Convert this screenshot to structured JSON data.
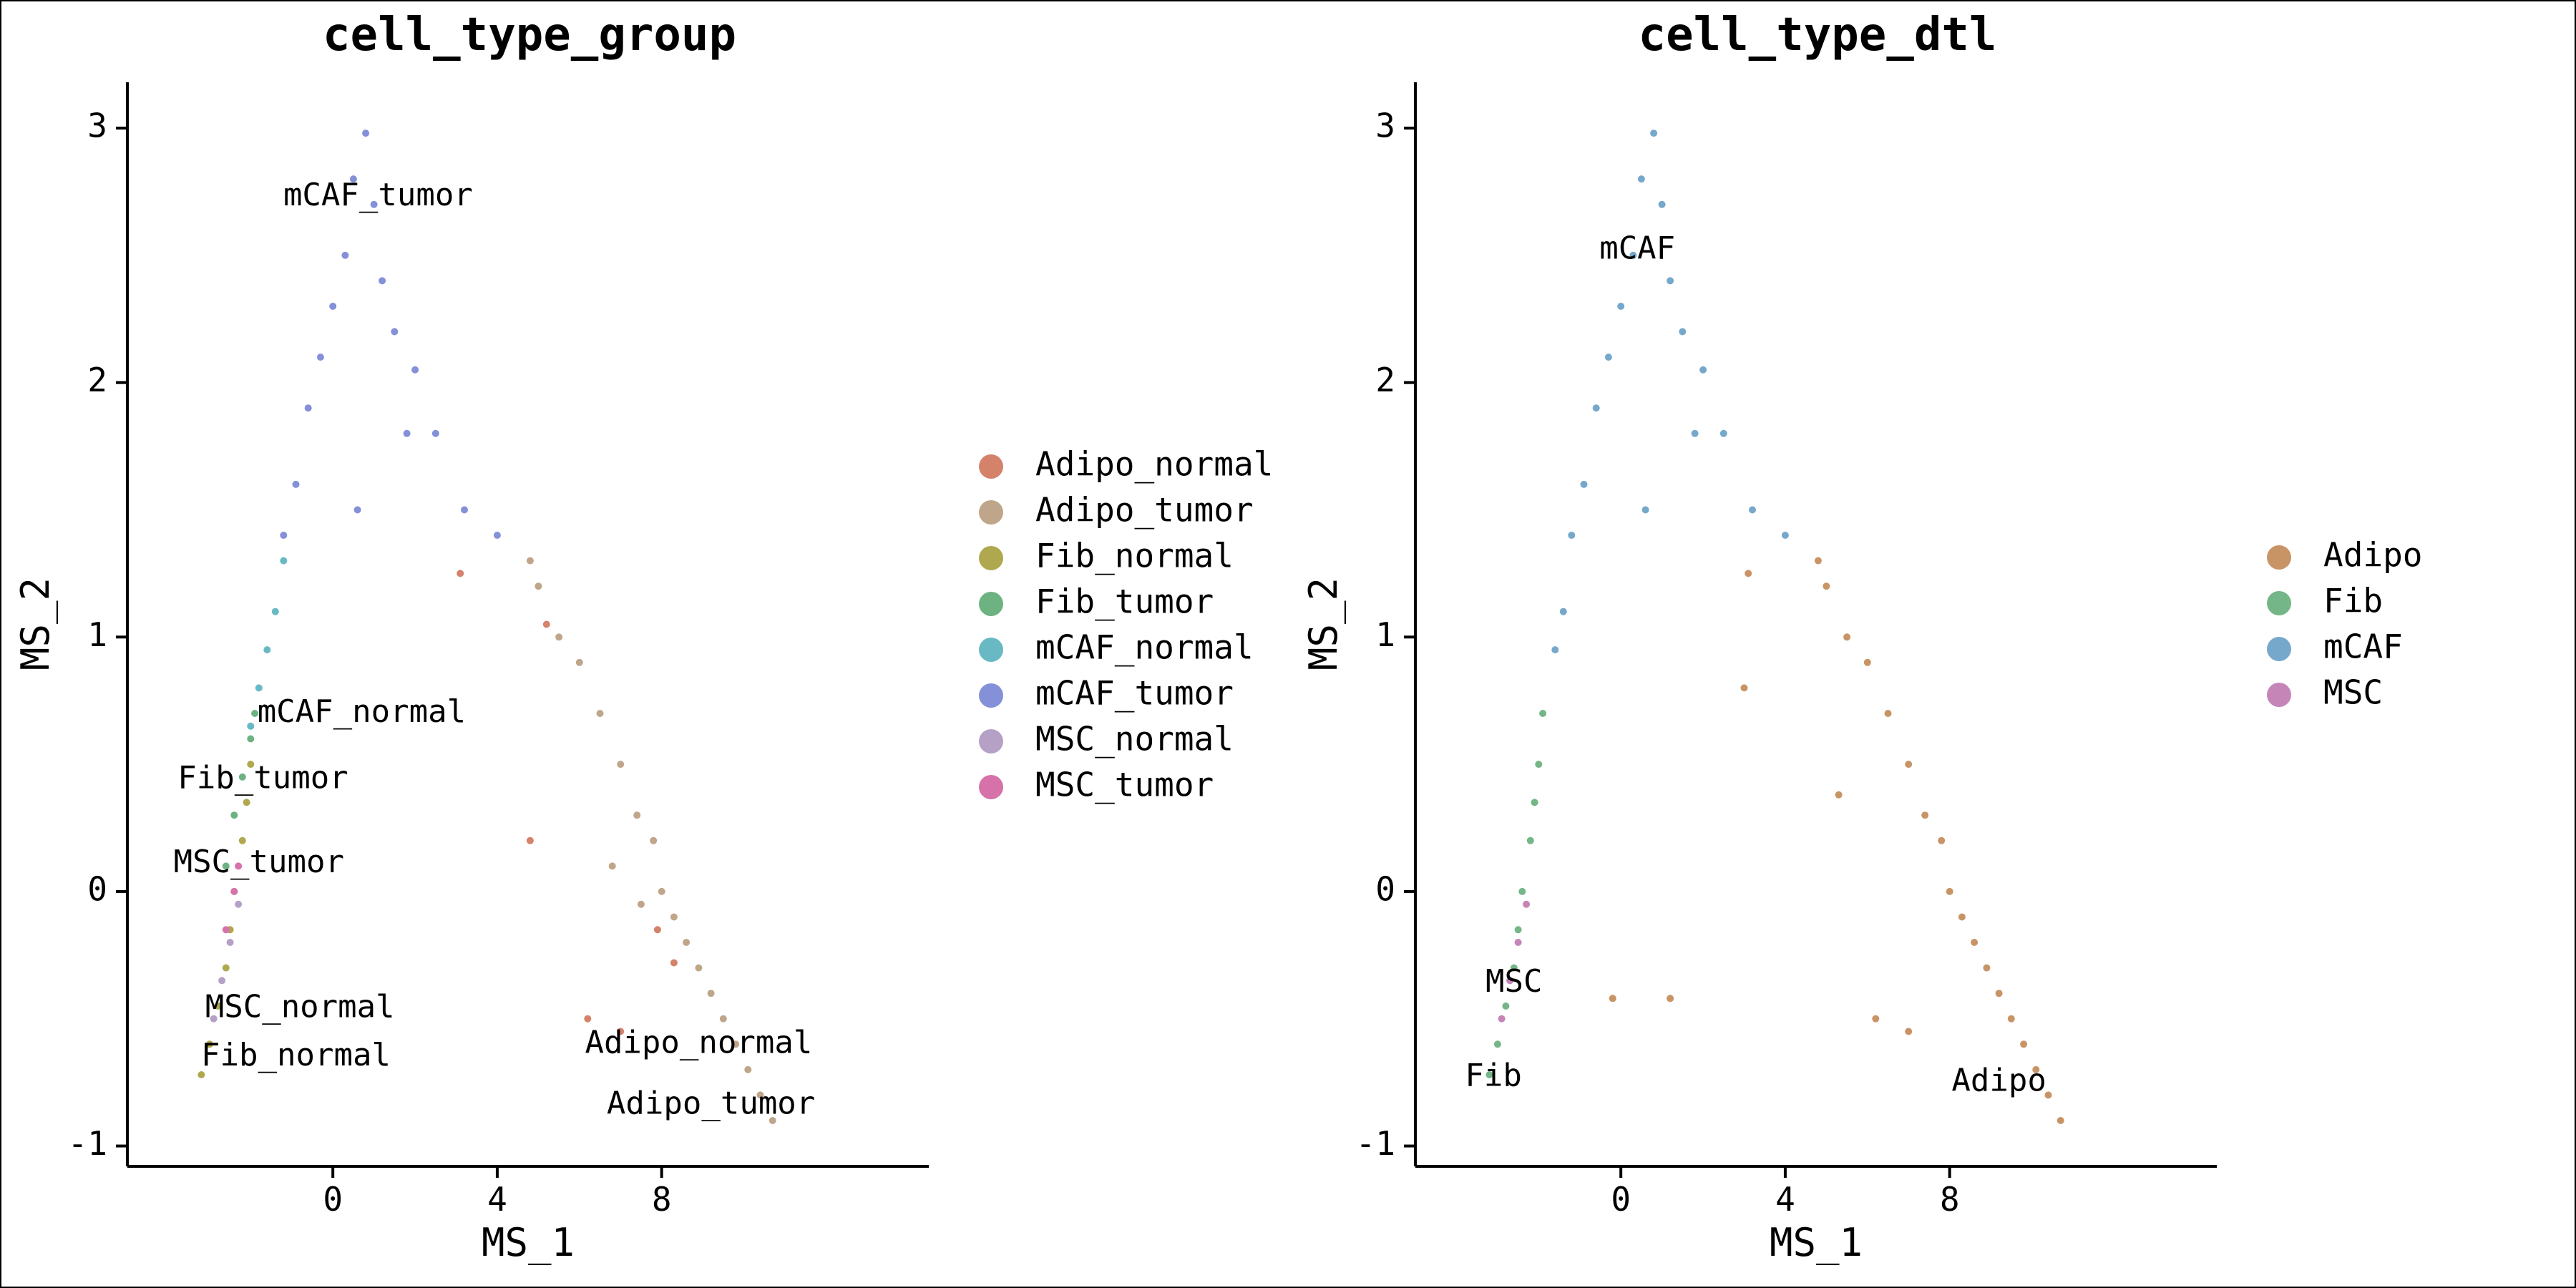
{
  "chart_data": [
    {
      "type": "scatter",
      "title": "cell_type_group",
      "xlabel": "MS_1",
      "ylabel": "MS_2",
      "xlim": [
        -5,
        14.5
      ],
      "ylim": [
        -1.08,
        3.18
      ],
      "xticks": [
        0,
        4,
        8
      ],
      "yticks": [
        -1,
        0,
        1,
        2,
        3
      ],
      "xtick_labels": [
        "0",
        "4",
        "8"
      ],
      "ytick_labels": [
        "-1",
        "0",
        "1",
        "2",
        "3"
      ],
      "legend_position": "right",
      "series": [
        {
          "name": "Adipo_normal",
          "color": "#D4826A",
          "points": [
            [
              3.1,
              1.25
            ],
            [
              5.2,
              1.05
            ],
            [
              6.2,
              -0.5
            ],
            [
              7.0,
              -0.55
            ],
            [
              4.8,
              0.2
            ],
            [
              8.3,
              -0.28
            ],
            [
              7.9,
              -0.15
            ]
          ]
        },
        {
          "name": "Adipo_tumor",
          "color": "#BFA58A",
          "points": [
            [
              4.8,
              1.3
            ],
            [
              5.0,
              1.2
            ],
            [
              5.5,
              1.0
            ],
            [
              6.0,
              0.9
            ],
            [
              6.5,
              0.7
            ],
            [
              7.0,
              0.5
            ],
            [
              7.4,
              0.3
            ],
            [
              7.8,
              0.2
            ],
            [
              8.0,
              0.0
            ],
            [
              8.3,
              -0.1
            ],
            [
              8.6,
              -0.2
            ],
            [
              8.9,
              -0.3
            ],
            [
              9.2,
              -0.4
            ],
            [
              9.5,
              -0.5
            ],
            [
              9.8,
              -0.6
            ],
            [
              10.1,
              -0.7
            ],
            [
              10.4,
              -0.8
            ],
            [
              10.7,
              -0.9
            ],
            [
              6.8,
              0.1
            ],
            [
              7.5,
              -0.05
            ]
          ]
        },
        {
          "name": "Fib_normal",
          "color": "#AFA84F",
          "points": [
            [
              -3.2,
              -0.72
            ],
            [
              -3.0,
              -0.6
            ],
            [
              -2.8,
              -0.45
            ],
            [
              -2.6,
              -0.3
            ],
            [
              -2.5,
              -0.15
            ],
            [
              -2.4,
              0.0
            ],
            [
              -2.2,
              0.2
            ],
            [
              -2.1,
              0.35
            ],
            [
              -2.0,
              0.5
            ]
          ]
        },
        {
          "name": "Fib_tumor",
          "color": "#6DB382",
          "points": [
            [
              -2.6,
              0.1
            ],
            [
              -2.4,
              0.3
            ],
            [
              -2.2,
              0.45
            ],
            [
              -2.0,
              0.6
            ],
            [
              -1.9,
              0.7
            ]
          ]
        },
        {
          "name": "mCAF_normal",
          "color": "#68B9C4",
          "points": [
            [
              -2.0,
              0.65
            ],
            [
              -1.8,
              0.8
            ],
            [
              -1.6,
              0.95
            ],
            [
              -1.4,
              1.1
            ],
            [
              -1.2,
              1.3
            ]
          ]
        },
        {
          "name": "mCAF_tumor",
          "color": "#8490D8",
          "points": [
            [
              0.8,
              2.98
            ],
            [
              0.5,
              2.8
            ],
            [
              1.0,
              2.7
            ],
            [
              0.3,
              2.5
            ],
            [
              1.2,
              2.4
            ],
            [
              0.0,
              2.3
            ],
            [
              1.5,
              2.2
            ],
            [
              -0.3,
              2.1
            ],
            [
              2.0,
              2.05
            ],
            [
              -0.6,
              1.9
            ],
            [
              2.5,
              1.8
            ],
            [
              -0.9,
              1.6
            ],
            [
              3.2,
              1.5
            ],
            [
              -1.2,
              1.4
            ],
            [
              4.0,
              1.4
            ],
            [
              1.8,
              1.8
            ],
            [
              0.6,
              1.5
            ]
          ]
        },
        {
          "name": "MSC_normal",
          "color": "#B5A0C6",
          "points": [
            [
              -2.9,
              -0.5
            ],
            [
              -2.7,
              -0.35
            ],
            [
              -2.5,
              -0.2
            ],
            [
              -2.3,
              -0.05
            ]
          ]
        },
        {
          "name": "MSC_tumor",
          "color": "#D771A9",
          "points": [
            [
              -2.6,
              -0.15
            ],
            [
              -2.4,
              0.0
            ],
            [
              -2.3,
              0.1
            ]
          ]
        }
      ],
      "cluster_labels": [
        {
          "text": "mCAF_tumor",
          "x": 1.1,
          "y": 2.73
        },
        {
          "text": "mCAF_normal",
          "x": 0.7,
          "y": 0.7
        },
        {
          "text": "Fib_tumor",
          "x": -1.7,
          "y": 0.44
        },
        {
          "text": "MSC_tumor",
          "x": -1.8,
          "y": 0.11
        },
        {
          "text": "MSC_normal",
          "x": -0.8,
          "y": -0.46
        },
        {
          "text": "Fib_normal",
          "x": -0.9,
          "y": -0.65
        },
        {
          "text": "Adipo_normal",
          "x": 8.9,
          "y": -0.6
        },
        {
          "text": "Adipo_tumor",
          "x": 9.2,
          "y": -0.84
        }
      ]
    },
    {
      "type": "scatter",
      "title": "cell_type_dtl",
      "xlabel": "MS_1",
      "ylabel": "MS_2",
      "xlim": [
        -5,
        14.5
      ],
      "ylim": [
        -1.08,
        3.18
      ],
      "xticks": [
        0,
        4,
        8
      ],
      "yticks": [
        -1,
        0,
        1,
        2,
        3
      ],
      "xtick_labels": [
        "0",
        "4",
        "8"
      ],
      "ytick_labels": [
        "-1",
        "0",
        "1",
        "2",
        "3"
      ],
      "legend_position": "right",
      "series": [
        {
          "name": "Adipo",
          "color": "#C89466",
          "points": [
            [
              3.1,
              1.25
            ],
            [
              3.0,
              0.8
            ],
            [
              4.8,
              1.3
            ],
            [
              5.0,
              1.2
            ],
            [
              5.5,
              1.0
            ],
            [
              6.0,
              0.9
            ],
            [
              6.5,
              0.7
            ],
            [
              7.0,
              0.5
            ],
            [
              7.4,
              0.3
            ],
            [
              7.8,
              0.2
            ],
            [
              8.0,
              0.0
            ],
            [
              8.3,
              -0.1
            ],
            [
              8.6,
              -0.2
            ],
            [
              8.9,
              -0.3
            ],
            [
              9.2,
              -0.4
            ],
            [
              9.5,
              -0.5
            ],
            [
              9.8,
              -0.6
            ],
            [
              10.1,
              -0.7
            ],
            [
              10.4,
              -0.8
            ],
            [
              10.7,
              -0.9
            ],
            [
              6.2,
              -0.5
            ],
            [
              7.0,
              -0.55
            ],
            [
              5.3,
              0.38
            ],
            [
              1.2,
              -0.42
            ],
            [
              -0.2,
              -0.42
            ]
          ]
        },
        {
          "name": "Fib",
          "color": "#74B687",
          "points": [
            [
              -3.2,
              -0.72
            ],
            [
              -3.0,
              -0.6
            ],
            [
              -2.8,
              -0.45
            ],
            [
              -2.6,
              -0.3
            ],
            [
              -2.5,
              -0.15
            ],
            [
              -2.4,
              0.0
            ],
            [
              -2.2,
              0.2
            ],
            [
              -2.1,
              0.35
            ],
            [
              -2.0,
              0.5
            ],
            [
              -1.9,
              0.7
            ]
          ]
        },
        {
          "name": "mCAF",
          "color": "#76A8CC",
          "points": [
            [
              0.8,
              2.98
            ],
            [
              0.5,
              2.8
            ],
            [
              1.0,
              2.7
            ],
            [
              0.3,
              2.5
            ],
            [
              1.2,
              2.4
            ],
            [
              0.0,
              2.3
            ],
            [
              1.5,
              2.2
            ],
            [
              -0.3,
              2.1
            ],
            [
              2.0,
              2.05
            ],
            [
              -0.6,
              1.9
            ],
            [
              2.5,
              1.8
            ],
            [
              -0.9,
              1.6
            ],
            [
              3.2,
              1.5
            ],
            [
              -1.2,
              1.4
            ],
            [
              4.0,
              1.4
            ],
            [
              1.8,
              1.8
            ],
            [
              0.6,
              1.5
            ],
            [
              -1.6,
              0.95
            ],
            [
              -1.4,
              1.1
            ]
          ]
        },
        {
          "name": "MSC",
          "color": "#C685B7",
          "points": [
            [
              -2.9,
              -0.5
            ],
            [
              -2.7,
              -0.35
            ],
            [
              -2.5,
              -0.2
            ],
            [
              -2.3,
              -0.05
            ]
          ]
        }
      ],
      "cluster_labels": [
        {
          "text": "mCAF",
          "x": 0.4,
          "y": 2.52
        },
        {
          "text": "MSC",
          "x": -2.6,
          "y": -0.36
        },
        {
          "text": "Fib",
          "x": -3.1,
          "y": -0.73
        },
        {
          "text": "Adipo",
          "x": 9.2,
          "y": -0.75
        }
      ]
    }
  ]
}
